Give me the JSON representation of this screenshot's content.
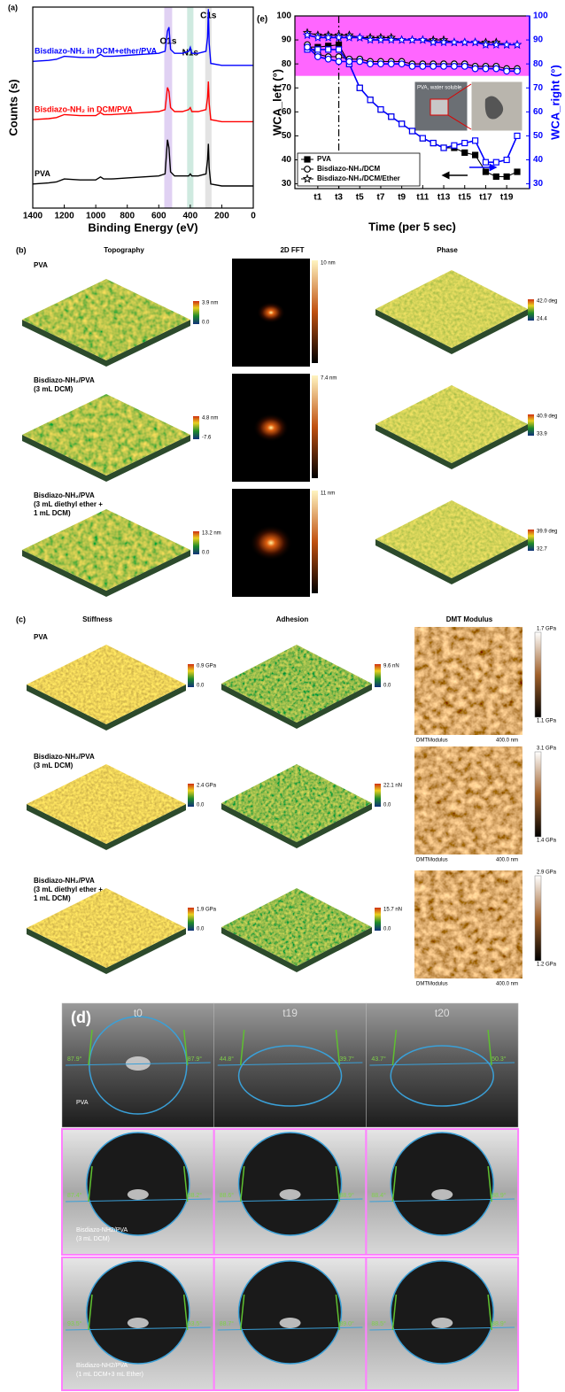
{
  "chart_data": [
    {
      "type": "line",
      "panel": "(a)",
      "xlabel": "Binding Energy (eV)",
      "ylabel": "Counts (s)",
      "x": [
        1400,
        1300,
        1250,
        1200,
        1100,
        1000,
        970,
        950,
        900,
        800,
        700,
        600,
        560,
        545,
        535,
        525,
        500,
        450,
        410,
        400,
        390,
        350,
        300,
        290,
        285,
        280,
        270,
        200,
        100,
        0
      ],
      "xlim": [
        1400,
        0
      ],
      "xticks": [
        1400,
        1200,
        1000,
        800,
        600,
        400,
        200,
        0
      ],
      "ylim": [
        0,
        100
      ],
      "regions": [
        {
          "label": "O1s",
          "range": [
            565,
            515
          ],
          "color": "#d6c2ef"
        },
        {
          "label": "N1s",
          "range": [
            420,
            380
          ],
          "color": "#bfe3d6"
        },
        {
          "label": "C1s",
          "range": [
            305,
            265
          ],
          "color": "#d9d9d9"
        }
      ],
      "series": [
        {
          "name": "Bisdiazo-NH₂ in DCM+ether/PVA",
          "color": "#0000ff",
          "values": [
            73,
            73.5,
            74,
            75.5,
            75,
            75,
            76.5,
            75.5,
            75.5,
            76,
            76.5,
            77,
            78,
            88,
            90,
            79,
            77,
            77,
            78,
            80,
            77,
            77,
            78,
            85,
            99,
            82,
            72,
            71,
            71,
            71
          ]
        },
        {
          "name": "Bisdiazo-NH₂ in DCM/PVA",
          "color": "#ff0000",
          "values": [
            44,
            44.5,
            45,
            46.5,
            46,
            46,
            47.5,
            46.5,
            46.5,
            47,
            47.5,
            48,
            49,
            60,
            58,
            50,
            48,
            48,
            49,
            50,
            48,
            48,
            49,
            55,
            63,
            52,
            44,
            43,
            43,
            43
          ]
        },
        {
          "name": "PVA",
          "color": "#000000",
          "values": [
            12,
            12.5,
            13,
            14.5,
            14,
            14,
            15.5,
            14.5,
            14.5,
            15,
            15.5,
            16,
            17,
            34,
            30,
            18,
            16,
            16,
            16,
            17,
            16,
            16,
            17,
            24,
            32,
            20,
            12,
            11,
            11,
            11
          ]
        }
      ]
    },
    {
      "type": "line",
      "panel": "(e)",
      "xlabel": "Time (per 5 sec)",
      "ylabel": "WCA_left (°)",
      "y2label": "WCA_right (°)",
      "categories": [
        null,
        "t1",
        null,
        "t3",
        null,
        "t5",
        null,
        "t7",
        null,
        "t9",
        null,
        "t11",
        null,
        "t13",
        null,
        "t15",
        null,
        "t17",
        null,
        "t19",
        null
      ],
      "ylim": [
        28,
        100
      ],
      "yticks": [
        30,
        40,
        50,
        60,
        70,
        80,
        90,
        100
      ],
      "y2lim": [
        28,
        100
      ],
      "y2ticks": [
        30,
        40,
        50,
        60,
        70,
        80,
        90,
        100
      ],
      "y2color": "#0000ff",
      "band": {
        "range": [
          75,
          100
        ],
        "color": "#ff66ff"
      },
      "marker_line": "t3",
      "legend": "lower left",
      "inset_label": "PVA, water soluble",
      "series": [
        {
          "name": "PVA",
          "color": "#000000",
          "marker": "square",
          "filled": true,
          "values": [
            87,
            87,
            87.5,
            88,
            80,
            70,
            65,
            61,
            58,
            55,
            52,
            49,
            47,
            45,
            45,
            43,
            42,
            35,
            33,
            33,
            35
          ]
        },
        {
          "name": "Bisdiazo-NH₂/DCM",
          "color": "#000000",
          "marker": "circle",
          "filled": false,
          "values": [
            88,
            84,
            83,
            83,
            82,
            82,
            81,
            81,
            81,
            81,
            80,
            80,
            80,
            80,
            80,
            80,
            79,
            79,
            79,
            78,
            78
          ]
        },
        {
          "name": "Bisdiazo-NH₂/DCM/Ether",
          "color": "#000000",
          "marker": "star",
          "filled": false,
          "values": [
            93,
            92,
            92,
            92,
            92,
            91,
            91,
            91,
            91,
            90,
            90,
            90,
            90,
            90,
            89,
            89,
            89,
            89,
            89,
            88,
            88
          ]
        },
        {
          "color": "#0000ff",
          "marker": "square",
          "filled": false,
          "axis": "y2",
          "values": [
            86,
            86,
            86,
            86,
            80,
            70,
            65,
            61,
            58,
            55,
            52,
            49,
            47,
            45,
            46,
            47,
            48,
            39,
            39,
            40,
            50
          ]
        },
        {
          "color": "#0000ff",
          "marker": "circle",
          "filled": false,
          "axis": "y2",
          "values": [
            87,
            83,
            82,
            81,
            81,
            81,
            80,
            80,
            80,
            80,
            79,
            79,
            79,
            79,
            79,
            79,
            78,
            78,
            78,
            77,
            77
          ]
        },
        {
          "color": "#0000ff",
          "marker": "star",
          "filled": false,
          "axis": "y2",
          "values": [
            92,
            91,
            91,
            91,
            91,
            91,
            90,
            90,
            90,
            90,
            90,
            90,
            89,
            89,
            89,
            89,
            89,
            88,
            88,
            88,
            88
          ]
        }
      ]
    }
  ],
  "panels": {
    "b": {
      "label": "(b)",
      "columns": [
        "Topography",
        "2D FFT",
        "Phase"
      ],
      "rows": [
        [
          "PVA"
        ],
        [
          "Bisdiazo-NH₂/PVA",
          "(3 mL DCM)"
        ],
        [
          "Bisdiazo-NH₂/PVA",
          "(3 mL diethyl ether +",
          "1 mL DCM)"
        ]
      ],
      "scales": [
        [
          [
            "3.9 nm",
            "0.0"
          ],
          [
            "10 nm"
          ],
          [
            "42.0 deg",
            "24.4"
          ]
        ],
        [
          [
            "4.8 nm",
            "-7.6"
          ],
          [
            "7.4 nm"
          ],
          [
            "40.9 deg",
            "33.9"
          ]
        ],
        [
          [
            "13.2 nm",
            "0.0"
          ],
          [
            "11 nm"
          ],
          [
            "39.9 deg",
            "32.7"
          ]
        ]
      ]
    },
    "c": {
      "label": "(c)",
      "columns": [
        "Stiffness",
        "Adhesion",
        "DMT Modulus"
      ],
      "rows": [
        [
          "PVA"
        ],
        [
          "Bisdiazo-NH₂/PVA",
          "(3 mL DCM)"
        ],
        [
          "Bisdiazo-NH₂/PVA",
          "(3 mL diethyl ether +",
          "1 mL DCM)"
        ]
      ],
      "scales": [
        [
          [
            "0.9 GPa",
            "0.0"
          ],
          [
            "9.6 nN",
            "0.0"
          ],
          [
            "1.7 GPa",
            "1.1 GPa"
          ]
        ],
        [
          [
            "2.4 GPa",
            "0.0"
          ],
          [
            "22.1 nN",
            "0.0"
          ],
          [
            "3.1 GPa",
            "1.4 GPa"
          ]
        ],
        [
          [
            "1.9 GPa",
            "0.0"
          ],
          [
            "15.7 nN",
            "0.0"
          ],
          [
            "2.9 GPa",
            "1.2 GPa"
          ]
        ]
      ],
      "caption": "DMTModulus",
      "scale_bar": "400.0 nm"
    },
    "d": {
      "label": "(d)",
      "columns": [
        "t0",
        "t19",
        "t20"
      ],
      "rows": [
        [
          "PVA"
        ],
        [
          "Bisdiazo-NH2/PVA",
          "(3 mL DCM)"
        ],
        [
          "Bisdiazo-NH2/PVA",
          "(1 mL DCM+3 mL Ether)"
        ]
      ],
      "angles": [
        [
          [
            "87.9°",
            "87.9°"
          ],
          [
            "44.8°",
            "39.7°"
          ],
          [
            "43.7°",
            "50.3°"
          ]
        ],
        [
          [
            "87.4°",
            "88.2°"
          ],
          [
            "88.6°",
            "88.9°"
          ],
          [
            "88.4°",
            "88.9°"
          ]
        ],
        [
          [
            "93.5°",
            "93.5°"
          ],
          [
            "88.7°",
            "89.0°"
          ],
          [
            "88.5°",
            "88.9°"
          ]
        ]
      ]
    }
  }
}
